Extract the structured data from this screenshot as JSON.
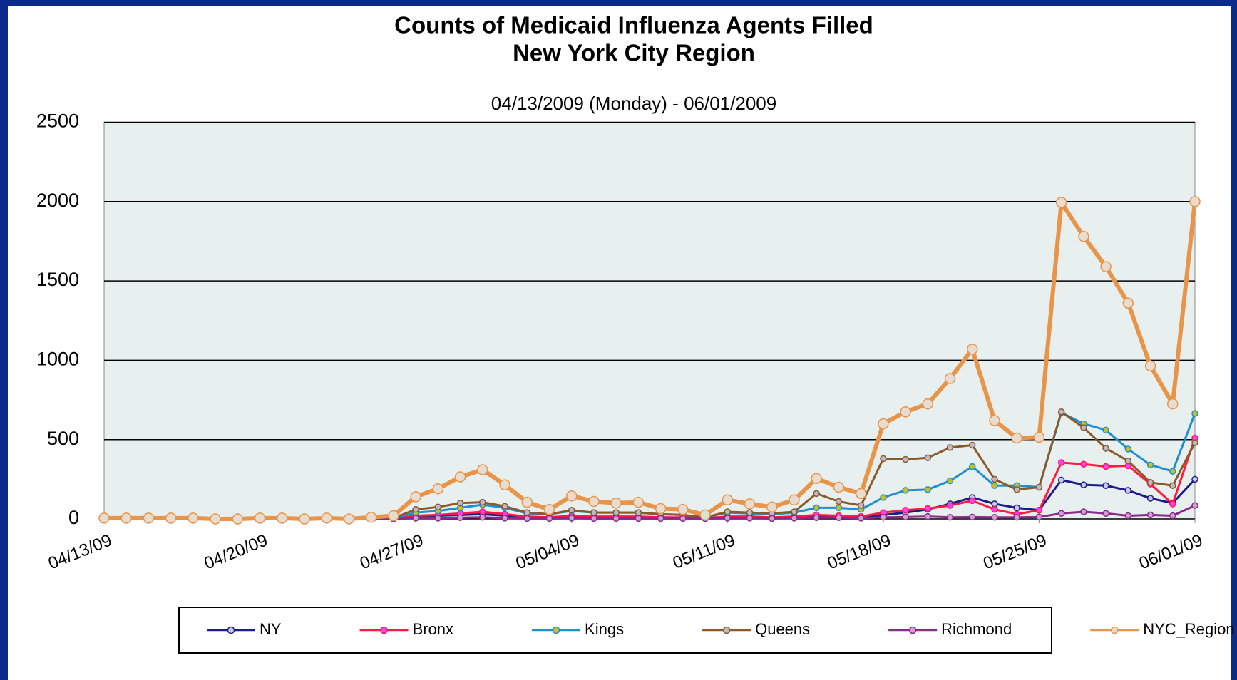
{
  "chart_data": {
    "type": "line",
    "title": "Counts of Medicaid Influenza Agents Filled",
    "subtitle_line": "New York City Region",
    "subtitle": "04/13/2009 (Monday) - 06/01/2009",
    "categories": [
      "04/13/09",
      null,
      null,
      null,
      null,
      null,
      null,
      "04/20/09",
      null,
      null,
      null,
      null,
      null,
      null,
      "04/27/09",
      null,
      null,
      null,
      null,
      null,
      null,
      "05/04/09",
      null,
      null,
      null,
      null,
      null,
      null,
      "05/11/09",
      null,
      null,
      null,
      null,
      null,
      null,
      "05/18/09",
      null,
      null,
      null,
      null,
      null,
      null,
      "05/25/09",
      null,
      null,
      null,
      null,
      null,
      null,
      "06/01/09"
    ],
    "ylim": [
      0,
      2500
    ],
    "yticks": [
      0,
      500,
      1000,
      1500,
      2000,
      2500
    ],
    "grid": true,
    "legend": "bottom",
    "series": [
      {
        "name": "NY",
        "color": "#1c1c8c",
        "marker_color": "#c8c8e8",
        "values": [
          null,
          null,
          null,
          null,
          null,
          null,
          null,
          null,
          null,
          null,
          null,
          null,
          0,
          2,
          15,
          20,
          25,
          30,
          20,
          10,
          10,
          15,
          10,
          10,
          10,
          10,
          8,
          5,
          10,
          10,
          8,
          10,
          15,
          15,
          10,
          25,
          40,
          60,
          95,
          135,
          95,
          70,
          55,
          245,
          215,
          210,
          180,
          130,
          100,
          250
        ]
      },
      {
        "name": "Bronx",
        "color": "#ff1a40",
        "marker_color": "#ff40ff",
        "values": [
          null,
          null,
          null,
          null,
          null,
          null,
          null,
          null,
          null,
          null,
          null,
          null,
          0,
          2,
          20,
          25,
          35,
          45,
          30,
          15,
          10,
          20,
          15,
          15,
          15,
          10,
          10,
          5,
          15,
          15,
          10,
          15,
          25,
          20,
          15,
          40,
          55,
          65,
          85,
          115,
          60,
          30,
          55,
          355,
          345,
          330,
          335,
          220,
          95,
          510
        ]
      },
      {
        "name": "Kings",
        "color": "#1e8fd0",
        "marker_color": "#c8c020",
        "values": [
          null,
          null,
          null,
          null,
          null,
          null,
          null,
          null,
          null,
          null,
          null,
          null,
          0,
          5,
          40,
          50,
          70,
          90,
          70,
          35,
          30,
          50,
          40,
          40,
          40,
          30,
          25,
          10,
          40,
          35,
          30,
          40,
          70,
          70,
          60,
          135,
          180,
          185,
          240,
          330,
          210,
          210,
          200,
          670,
          600,
          560,
          440,
          340,
          300,
          665
        ]
      },
      {
        "name": "Queens",
        "color": "#8b5a2b",
        "marker_color": "#c0b8c8",
        "values": [
          null,
          null,
          null,
          null,
          null,
          null,
          null,
          null,
          null,
          null,
          null,
          null,
          0,
          5,
          60,
          75,
          100,
          105,
          80,
          40,
          30,
          55,
          40,
          40,
          40,
          30,
          25,
          10,
          45,
          40,
          35,
          45,
          160,
          110,
          85,
          380,
          375,
          385,
          450,
          465,
          250,
          185,
          200,
          675,
          575,
          445,
          365,
          230,
          210,
          480
        ]
      },
      {
        "name": "Richmond",
        "color": "#8b2a8b",
        "marker_color": "#d0a0d0",
        "values": [
          null,
          null,
          null,
          null,
          null,
          null,
          null,
          null,
          null,
          null,
          null,
          null,
          0,
          0,
          5,
          5,
          8,
          10,
          5,
          3,
          3,
          5,
          3,
          3,
          3,
          3,
          3,
          2,
          5,
          5,
          3,
          5,
          8,
          8,
          5,
          10,
          12,
          15,
          10,
          12,
          10,
          10,
          12,
          35,
          45,
          35,
          20,
          25,
          20,
          85
        ]
      },
      {
        "name": "NYC_Region",
        "color": "#e8954a",
        "marker_color": "#e8dcd0",
        "values": [
          5,
          5,
          5,
          5,
          5,
          0,
          0,
          5,
          5,
          0,
          5,
          0,
          10,
          20,
          140,
          190,
          265,
          310,
          215,
          105,
          60,
          145,
          110,
          100,
          105,
          65,
          60,
          25,
          120,
          95,
          75,
          120,
          255,
          200,
          160,
          600,
          675,
          725,
          885,
          1070,
          620,
          510,
          515,
          1995,
          1780,
          1590,
          1360,
          965,
          725,
          2000
        ]
      }
    ]
  }
}
